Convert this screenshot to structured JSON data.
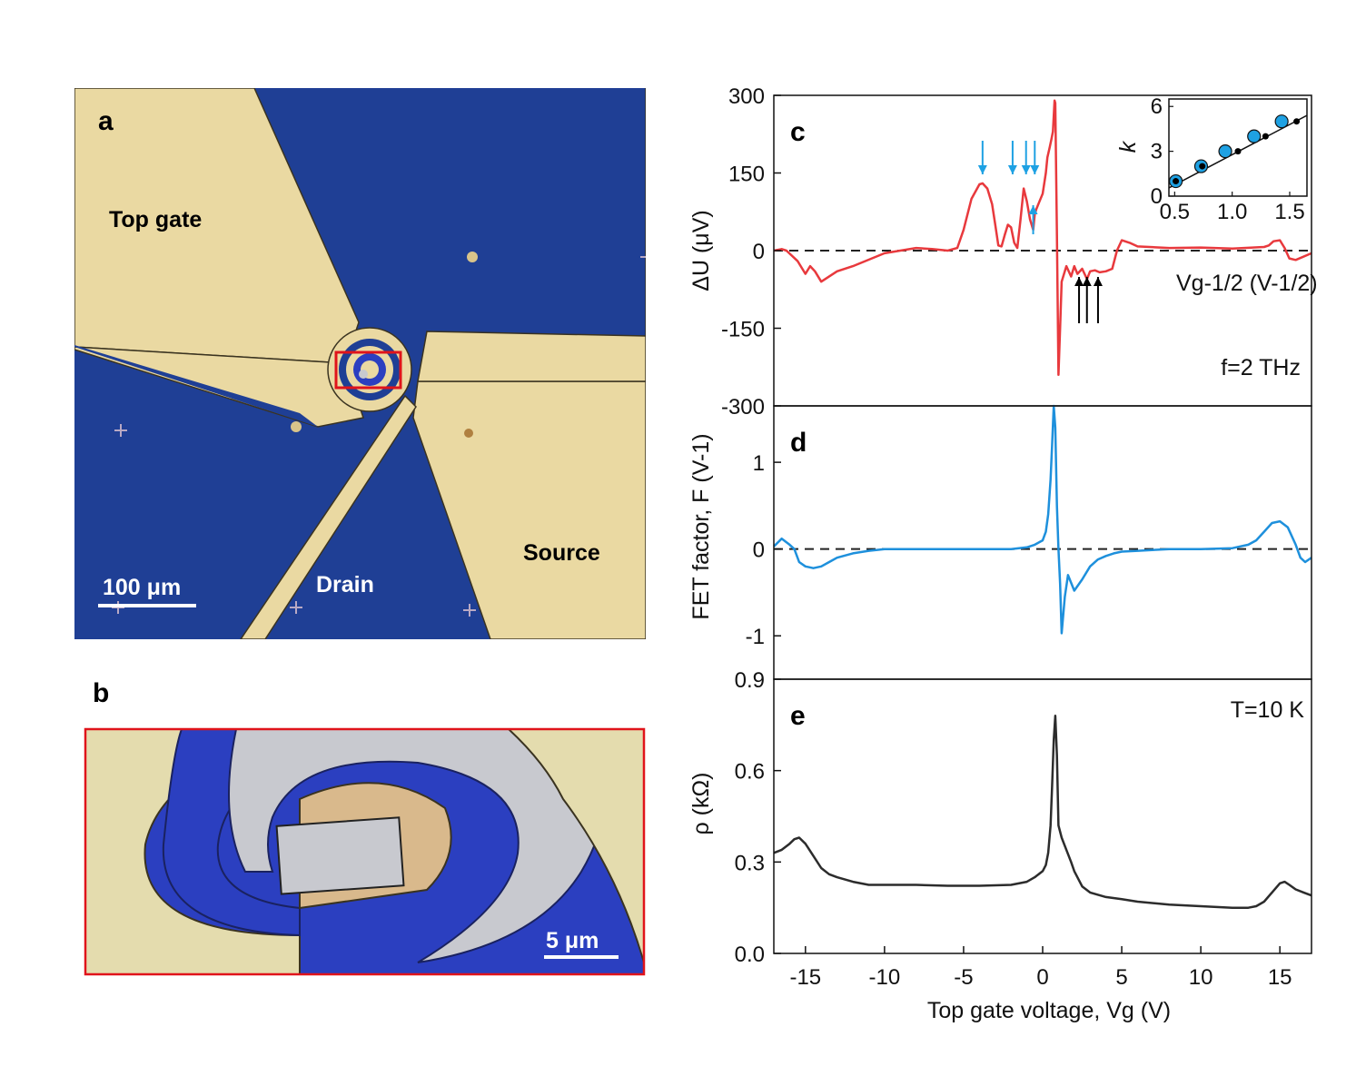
{
  "panel_a": {
    "label": "a",
    "labels": {
      "top_gate": "Top gate",
      "source": "Source",
      "drain": "Drain"
    },
    "scale_bar": "100 μm",
    "colors": {
      "substrate": "#1f3f95",
      "metal": "#ead9a2",
      "highlight_box": "#e0141b"
    }
  },
  "panel_b": {
    "label": "b",
    "scale_bar": "5 μm",
    "colors": {
      "substrate": "#2b3fc0",
      "metal": "#e4dcae",
      "graphene": "#c8c9cf",
      "frame": "#e0141b"
    }
  },
  "chart_data": [
    {
      "id": "c",
      "type": "line",
      "panel_label": "c",
      "ylabel": "ΔU (μV)",
      "ylim": [
        -300,
        300
      ],
      "yticks": [
        300,
        150,
        0,
        -150,
        -300
      ],
      "xlim": [
        -17,
        17
      ],
      "annotation": "f=2 THz",
      "color": "#e8393d",
      "zero_line": true,
      "series": [
        {
          "x": [
            -17,
            -16.5,
            -16.2,
            -15.5,
            -15,
            -14.7,
            -14.4,
            -14,
            -13,
            -12,
            -10,
            -8,
            -7,
            -6,
            -5.4,
            -5,
            -4.5,
            -4,
            -3.8,
            -3.5,
            -3.2,
            -3,
            -2.8,
            -2.6,
            -2.4,
            -2.2,
            -2,
            -1.8,
            -1.6,
            -1.4,
            -1.2,
            -1,
            -0.8,
            -0.6,
            -0.5,
            -0.4,
            -0.2,
            0,
            0.2,
            0.3,
            0.45,
            0.55,
            0.65,
            0.75,
            0.8,
            0.9,
            1,
            1.1,
            1.2,
            1.5,
            1.8,
            2,
            2.2,
            2.5,
            2.8,
            3,
            3.3,
            3.6,
            4,
            4.4,
            4.7,
            5,
            5.5,
            6,
            8,
            10,
            12,
            14,
            14.3,
            14.6,
            15,
            15.3,
            15.6,
            16,
            17
          ],
          "y": [
            0,
            3,
            0,
            -20,
            -45,
            -30,
            -40,
            -60,
            -40,
            -30,
            -5,
            5,
            3,
            0,
            5,
            40,
            100,
            128,
            130,
            120,
            90,
            50,
            10,
            8,
            30,
            50,
            45,
            15,
            5,
            60,
            120,
            95,
            60,
            40,
            70,
            80,
            95,
            110,
            150,
            180,
            200,
            215,
            230,
            290,
            285,
            30,
            -240,
            -150,
            -60,
            -30,
            -50,
            -30,
            -45,
            -35,
            -55,
            -40,
            -38,
            -42,
            -40,
            -35,
            0,
            20,
            15,
            8,
            5,
            6,
            4,
            7,
            10,
            18,
            20,
            5,
            -15,
            -18,
            -5
          ]
        }
      ],
      "arrows": {
        "blue_down_x": [
          -3.8,
          -1.9,
          -1.05,
          -0.5
        ],
        "blue_up_x": [
          -0.6
        ],
        "black_up_x": [
          2.3,
          2.8,
          3.5
        ],
        "colors": {
          "blue": "#1ea1e3",
          "black": "#000000"
        }
      },
      "inset": {
        "type": "scatter",
        "xlabel": "Vg-1/2 (V-1/2)",
        "ylabel": "k",
        "xlim": [
          0.45,
          1.65
        ],
        "ylim": [
          0,
          6.5
        ],
        "xticks": [
          "0.5",
          "1.0",
          "1.5"
        ],
        "yticks": [
          "0",
          "3",
          "6"
        ],
        "blue_points": {
          "x": [
            0.51,
            0.73,
            0.94,
            1.19,
            1.43
          ],
          "y": [
            1,
            2,
            3,
            4,
            5
          ]
        },
        "black_points": {
          "x": [
            0.51,
            0.74,
            1.05,
            1.29,
            1.56
          ],
          "y": [
            1,
            2,
            3,
            4,
            5
          ]
        },
        "fit_line": {
          "x": [
            0.45,
            1.65
          ],
          "y": [
            0.55,
            5.4
          ]
        },
        "colors": {
          "blue": "#1ea1e3",
          "black": "#000000"
        }
      }
    },
    {
      "id": "d",
      "type": "line",
      "panel_label": "d",
      "ylabel": "FET factor, F (V-1)",
      "ylim": [
        -1.5,
        1.65
      ],
      "yticks": [
        1,
        0,
        -1
      ],
      "xlim": [
        -17,
        17
      ],
      "color": "#1e90dc",
      "zero_line": true,
      "series": [
        {
          "x": [
            -17,
            -16.5,
            -16,
            -15.7,
            -15.4,
            -15,
            -14.5,
            -14,
            -13.5,
            -13,
            -12,
            -11,
            -10,
            -8,
            -6,
            -4,
            -2,
            -1.5,
            -1,
            -0.5,
            0,
            0.2,
            0.35,
            0.5,
            0.6,
            0.7,
            0.8,
            0.9,
            1,
            1.1,
            1.2,
            1.4,
            1.6,
            2,
            2.5,
            3,
            3.5,
            4,
            4.5,
            5,
            6,
            8,
            10,
            12,
            13,
            13.5,
            14,
            14.5,
            15,
            15.5,
            16,
            16.3,
            16.6,
            17
          ],
          "y": [
            0.03,
            0.12,
            0.05,
            0,
            -0.15,
            -0.2,
            -0.22,
            -0.2,
            -0.15,
            -0.1,
            -0.05,
            -0.02,
            0,
            0,
            0,
            0,
            0,
            0.01,
            0.02,
            0.05,
            0.1,
            0.2,
            0.4,
            0.8,
            1.2,
            1.65,
            1.4,
            0.5,
            0,
            -0.4,
            -0.97,
            -0.55,
            -0.3,
            -0.48,
            -0.35,
            -0.2,
            -0.12,
            -0.08,
            -0.05,
            -0.03,
            -0.02,
            0,
            0,
            0.01,
            0.05,
            0.1,
            0.2,
            0.3,
            0.32,
            0.25,
            0.05,
            -0.1,
            -0.15,
            -0.1
          ]
        }
      ]
    },
    {
      "id": "e",
      "type": "line",
      "panel_label": "e",
      "ylabel": "ρ (kΩ)",
      "xlabel": "Top gate voltage, Vg (V)",
      "ylim": [
        0,
        0.9
      ],
      "yticks": [
        "0.9",
        "0.6",
        "0.3",
        "0.0"
      ],
      "xlim": [
        -17,
        17
      ],
      "xticks": [
        "-15",
        "-10",
        "-5",
        "0",
        "5",
        "10",
        "15"
      ],
      "annotation": "T=10 K",
      "color": "#2c2c2c",
      "series": [
        {
          "x": [
            -17,
            -16.5,
            -16,
            -15.7,
            -15.4,
            -15,
            -14.5,
            -14,
            -13.5,
            -13,
            -12,
            -11,
            -10,
            -8,
            -6,
            -4,
            -2,
            -1,
            -0.5,
            0,
            0.2,
            0.35,
            0.5,
            0.6,
            0.7,
            0.8,
            0.9,
            1,
            1.2,
            1.5,
            1.8,
            2,
            2.5,
            3,
            4,
            5,
            6,
            8,
            10,
            12,
            13,
            13.5,
            14,
            14.5,
            15,
            15.3,
            15.6,
            16,
            16.5,
            17
          ],
          "y": [
            0.33,
            0.34,
            0.36,
            0.375,
            0.38,
            0.36,
            0.32,
            0.28,
            0.26,
            0.25,
            0.235,
            0.225,
            0.225,
            0.225,
            0.222,
            0.222,
            0.225,
            0.235,
            0.25,
            0.27,
            0.29,
            0.33,
            0.42,
            0.55,
            0.7,
            0.78,
            0.65,
            0.42,
            0.38,
            0.34,
            0.3,
            0.27,
            0.22,
            0.2,
            0.185,
            0.178,
            0.17,
            0.16,
            0.155,
            0.15,
            0.15,
            0.155,
            0.17,
            0.2,
            0.23,
            0.235,
            0.225,
            0.21,
            0.2,
            0.19
          ]
        }
      ]
    }
  ]
}
